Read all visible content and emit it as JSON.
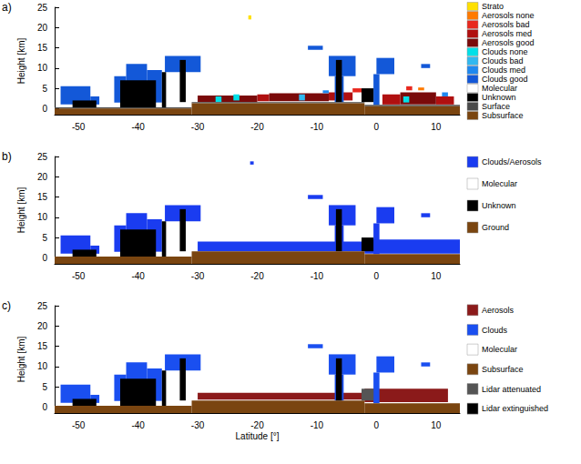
{
  "chart_data": [
    {
      "type": "curtain",
      "title": "a)",
      "y_label": "Height [km]",
      "xlim": [
        -54,
        14
      ],
      "xticks": [
        -50,
        -40,
        -30,
        -20,
        -10,
        0,
        10
      ],
      "ylim": [
        -1.5,
        25
      ],
      "yticks": [
        0,
        5,
        10,
        15,
        20,
        25
      ],
      "grid": false,
      "legend": "right",
      "series": [
        {
          "name": "Strato",
          "color": "#ffe000",
          "boxes": [
            [
              -21.5,
              -21,
              22,
              23
            ]
          ]
        },
        {
          "name": "Aerosols none",
          "color": "#ff7a00",
          "boxes": [
            [
              7,
              8,
              4.5,
              5.2
            ]
          ]
        },
        {
          "name": "Aerosols bad",
          "color": "#e8281e",
          "boxes": [
            [
              -4,
              -2.5,
              4,
              5
            ],
            [
              5,
              6,
              4.5,
              5.5
            ]
          ]
        },
        {
          "name": "Aerosols med",
          "color": "#b01010",
          "boxes": [
            [
              -20,
              -18,
              1.8,
              3.5
            ],
            [
              -8,
              -4,
              2,
              4
            ],
            [
              1,
              4,
              1,
              3.5
            ],
            [
              10,
              13,
              1,
              3
            ]
          ]
        },
        {
          "name": "Aerosols good",
          "color": "#7a0a0a",
          "boxes": [
            [
              -30,
              -20,
              1.6,
              3.2
            ],
            [
              -18,
              -8,
              1.8,
              3.8
            ],
            [
              4,
              10,
              1,
              4
            ]
          ]
        },
        {
          "name": "Clouds none",
          "color": "#00e0e8",
          "boxes": [
            [
              -27,
              -26,
              1.6,
              3
            ],
            [
              -24,
              -23,
              2,
              3.5
            ],
            [
              4.5,
              5.5,
              1.5,
              3
            ]
          ]
        },
        {
          "name": "Clouds bad",
          "color": "#30b8f0",
          "boxes": [
            [
              -13,
              -12,
              2,
              3.5
            ]
          ]
        },
        {
          "name": "Clouds med",
          "color": "#1e88f0",
          "boxes": [
            [
              -9,
              -8,
              3.8,
              4.5
            ],
            [
              11,
              12,
              3,
              4
            ]
          ]
        },
        {
          "name": "Clouds good",
          "color": "#1358d8",
          "boxes": [
            [
              -53,
              -48,
              1,
              5.5
            ],
            [
              -48,
              -46.5,
              1,
              3
            ],
            [
              -44,
              -42,
              1.5,
              8
            ],
            [
              -42,
              -38.5,
              1.5,
              11
            ],
            [
              -38.5,
              -36,
              1.5,
              9.5
            ],
            [
              -35.5,
              -29.5,
              9,
              13
            ],
            [
              -11.5,
              -9,
              14.5,
              15.5
            ],
            [
              -8,
              -3.5,
              8,
              13
            ],
            [
              -7,
              -5.5,
              1.6,
              8
            ],
            [
              0,
              3,
              8.5,
              12.5
            ],
            [
              -0.5,
              0.5,
              0.9,
              8.5
            ],
            [
              7.5,
              9,
              10,
              11
            ]
          ]
        },
        {
          "name": "Molecular",
          "color": "#ffffff",
          "boxes": []
        },
        {
          "name": "Unknown",
          "color": "#000000",
          "boxes": [
            [
              -51,
              -47,
              0.3,
              2
            ],
            [
              -43,
              -37,
              0.3,
              7
            ],
            [
              -36,
              -35.3,
              0.3,
              9
            ],
            [
              -33,
              -32,
              1.6,
              12
            ],
            [
              -6.8,
              -5.8,
              1.6,
              12
            ],
            [
              -2.5,
              -0.5,
              1.6,
              5
            ]
          ]
        },
        {
          "name": "Surface",
          "color": "#4a4a4a",
          "boxes": [
            [
              -54,
              -31,
              0,
              0.3
            ],
            [
              -31,
              -2,
              1.3,
              1.6
            ],
            [
              -2,
              14,
              0.6,
              0.9
            ]
          ]
        },
        {
          "name": "Subsurface",
          "color": "#7a4510",
          "boxes": [
            [
              -54,
              -31,
              -1.5,
              0
            ],
            [
              -31,
              -2,
              -1.5,
              1.3
            ],
            [
              -2,
              14,
              -1.5,
              0.6
            ]
          ]
        }
      ]
    },
    {
      "type": "curtain",
      "title": "b)",
      "y_label": "Height [km]",
      "xlim": [
        -54,
        14
      ],
      "xticks": [
        -50,
        -40,
        -30,
        -20,
        -10,
        0,
        10
      ],
      "ylim": [
        -1.5,
        25
      ],
      "yticks": [
        0,
        5,
        10,
        15,
        20,
        25
      ],
      "grid": false,
      "legend": "right",
      "series": [
        {
          "name": "Clouds/Aerosols",
          "color": "#1a3cf0",
          "boxes": [
            [
              -53,
              -48,
              1,
              5.5
            ],
            [
              -48,
              -46.5,
              1,
              3
            ],
            [
              -44,
              -42,
              1.5,
              8
            ],
            [
              -42,
              -38.5,
              1.5,
              11
            ],
            [
              -38.5,
              -36,
              1.5,
              9.5
            ],
            [
              -35.5,
              -29.5,
              9,
              13
            ],
            [
              -11.5,
              -9,
              14.5,
              15.5
            ],
            [
              -8,
              -3.5,
              8,
              13
            ],
            [
              -7,
              -5.5,
              1.6,
              8
            ],
            [
              0,
              3,
              8.5,
              12.5
            ],
            [
              -0.5,
              0.5,
              0.9,
              8.5
            ],
            [
              7.5,
              9,
              10,
              11
            ],
            [
              -30,
              -2,
              1.6,
              4
            ],
            [
              -2,
              14,
              1,
              4.5
            ],
            [
              -21.2,
              -20.6,
              23,
              23.8
            ]
          ]
        },
        {
          "name": "Molecular",
          "color": "#ffffff",
          "boxes": []
        },
        {
          "name": "Unknown",
          "color": "#000000",
          "boxes": [
            [
              -51,
              -47,
              0.3,
              2
            ],
            [
              -43,
              -37,
              0.3,
              7
            ],
            [
              -36,
              -35.3,
              0.3,
              9
            ],
            [
              -33,
              -32,
              1.6,
              12
            ],
            [
              -6.8,
              -5.8,
              1.6,
              12
            ],
            [
              -2.5,
              -0.5,
              1.6,
              5
            ]
          ]
        },
        {
          "name": "Ground",
          "color": "#7a4510",
          "boxes": [
            [
              -54,
              -31,
              -1.5,
              0.3
            ],
            [
              -31,
              -2,
              -1.5,
              1.6
            ],
            [
              -2,
              14,
              -1.5,
              0.9
            ]
          ]
        }
      ]
    },
    {
      "type": "curtain",
      "title": "c)",
      "x_label": "Latitude [°]",
      "y_label": "Height [km]",
      "xlim": [
        -54,
        14
      ],
      "xticks": [
        -50,
        -40,
        -30,
        -20,
        -10,
        0,
        10
      ],
      "ylim": [
        -1.5,
        25
      ],
      "yticks": [
        0,
        5,
        10,
        15,
        20,
        25
      ],
      "grid": false,
      "legend": "right",
      "series": [
        {
          "name": "Aerosols",
          "color": "#8b1a1a",
          "boxes": [
            [
              -30,
              -2,
              1.8,
              3.5
            ],
            [
              -2,
              12,
              1.2,
              4.5
            ]
          ]
        },
        {
          "name": "Clouds",
          "color": "#1a4ff0",
          "boxes": [
            [
              -53,
              -48,
              1,
              5.5
            ],
            [
              -48,
              -46.5,
              1,
              3
            ],
            [
              -44,
              -42,
              1.5,
              8
            ],
            [
              -42,
              -38.5,
              1.5,
              11
            ],
            [
              -38.5,
              -36,
              1.5,
              9.5
            ],
            [
              -35.5,
              -29.5,
              9,
              13
            ],
            [
              -11.5,
              -9,
              14.5,
              15.5
            ],
            [
              -8,
              -3.5,
              8,
              13
            ],
            [
              -7,
              -5.5,
              1.6,
              8
            ],
            [
              0,
              3,
              8.5,
              12.5
            ],
            [
              -0.5,
              0.5,
              0.9,
              8.5
            ],
            [
              7.5,
              9,
              10,
              11
            ]
          ]
        },
        {
          "name": "Molecular",
          "color": "#ffffff",
          "boxes": []
        },
        {
          "name": "Subsurface",
          "color": "#7a4510",
          "boxes": [
            [
              -54,
              -31,
              -1.5,
              0.3
            ],
            [
              -31,
              -2,
              -1.5,
              1.6
            ],
            [
              -2,
              14,
              -1.5,
              0.9
            ]
          ]
        },
        {
          "name": "Lidar attenuated",
          "color": "#555555",
          "boxes": [
            [
              -2.5,
              -0.5,
              1.6,
              4.5
            ]
          ]
        },
        {
          "name": "Lidar extinguished",
          "color": "#000000",
          "boxes": [
            [
              -51,
              -47,
              0.3,
              2
            ],
            [
              -43,
              -37,
              0.3,
              7
            ],
            [
              -36,
              -35.3,
              0.3,
              9
            ],
            [
              -33,
              -32,
              1.6,
              12
            ],
            [
              -6.8,
              -5.8,
              1.6,
              12
            ]
          ]
        }
      ]
    }
  ]
}
